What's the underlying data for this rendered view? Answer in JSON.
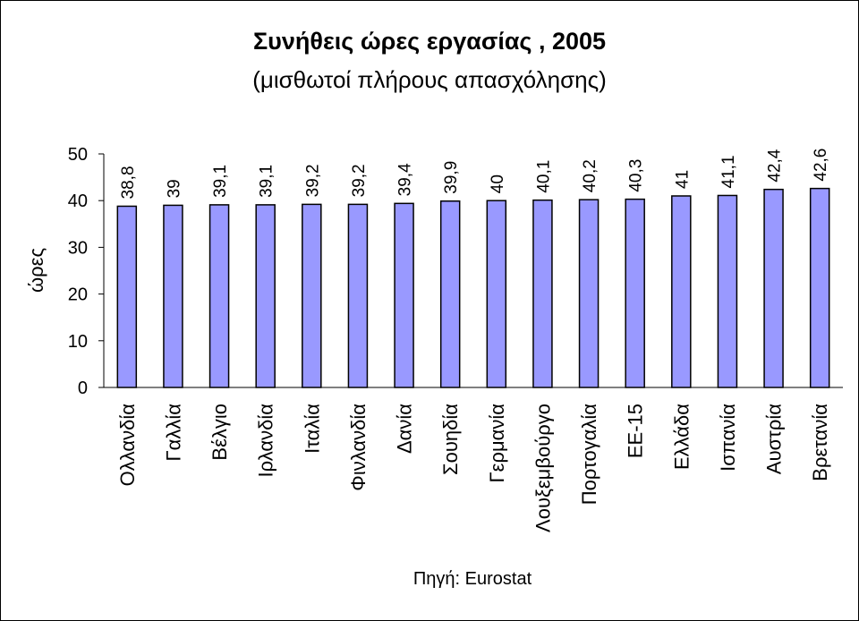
{
  "chart_data": {
    "type": "bar",
    "title": "Συνήθεις ώρες εργασίας , 2005",
    "subtitle": "(μισθωτοί πλήρους απασχόλησης)",
    "ylabel": "ώρες",
    "xlabel": "",
    "ylim": [
      0,
      50
    ],
    "yticks": [
      0,
      10,
      20,
      30,
      40,
      50
    ],
    "categories": [
      "Ολλανδία",
      "Γαλλία",
      "Βέλγιο",
      "Ιρλανδία",
      "Ιταλία",
      "Φινλανδία",
      "Δανία",
      "Σουηδία",
      "Γερμανία",
      "Λουξεμβούργο",
      "Πορτογαλία",
      "ΕΕ-15",
      "Ελλάδα",
      "Ισπανία",
      "Αυστρία",
      "Βρετανία"
    ],
    "values": [
      38.8,
      39,
      39.1,
      39.1,
      39.2,
      39.2,
      39.4,
      39.9,
      40,
      40.1,
      40.2,
      40.3,
      41,
      41.1,
      42.4,
      42.6
    ],
    "value_labels": [
      "38,8",
      "39",
      "39,1",
      "39,1",
      "39,2",
      "39,2",
      "39,4",
      "39,9",
      "40",
      "40,1",
      "40,2",
      "40,3",
      "41",
      "41,1",
      "42,4",
      "42,6"
    ],
    "grid": false,
    "legend": "none",
    "bar_color": "#9999ff",
    "bar_edge_color": "#000000",
    "source": "Πηγή: Eurostat"
  }
}
